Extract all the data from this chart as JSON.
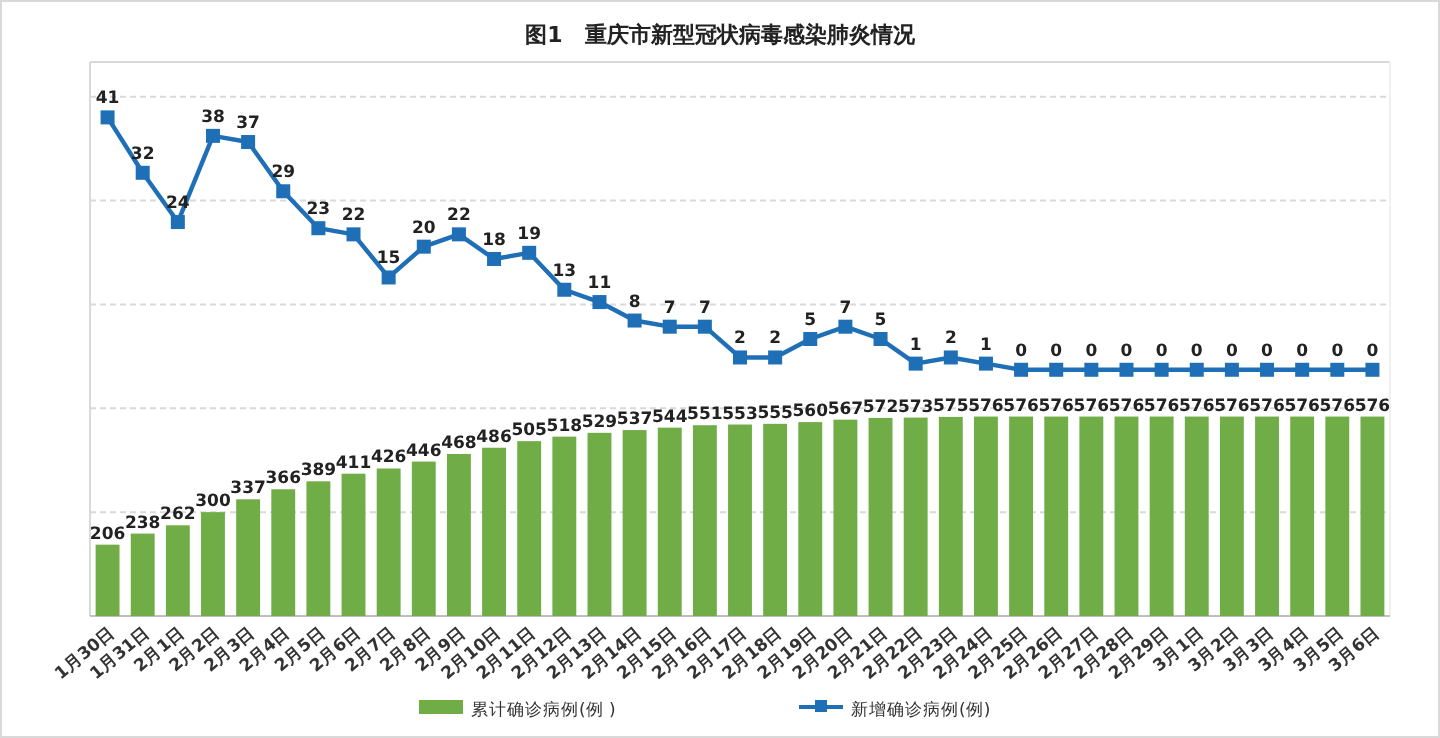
{
  "chart_data": {
    "type": "bar",
    "title": "图1　重庆市新型冠状病毒感染肺炎情况",
    "categories": [
      "1月30日",
      "1月31日",
      "2月1日",
      "2月2日",
      "2月3日",
      "2月4日",
      "2月5日",
      "2月6日",
      "2月7日",
      "2月8日",
      "2月9日",
      "2月10日",
      "2月11日",
      "2月12日",
      "2月13日",
      "2月14日",
      "2月15日",
      "2月16日",
      "2月17日",
      "2月18日",
      "2月19日",
      "2月20日",
      "2月21日",
      "2月22日",
      "2月23日",
      "2月24日",
      "2月25日",
      "2月26日",
      "2月27日",
      "2月28日",
      "2月29日",
      "3月1日",
      "3月2日",
      "3月3日",
      "3月4日",
      "3月5日",
      "3月6日"
    ],
    "series": [
      {
        "name": "累计确诊病例(例 )",
        "color": "#70ad47",
        "values": [
          206,
          238,
          262,
          300,
          337,
          366,
          389,
          411,
          426,
          446,
          468,
          486,
          505,
          518,
          529,
          537,
          544,
          551,
          553,
          555,
          560,
          567,
          572,
          573,
          575,
          576,
          576,
          576,
          576,
          576,
          576,
          576,
          576,
          576,
          576,
          576,
          576
        ]
      },
      {
        "name": "新增确诊病例(例)",
        "type": "line",
        "axis": "y2",
        "color": "#1f6fb7",
        "marker": "square",
        "values": [
          41,
          32,
          24,
          38,
          37,
          29,
          23,
          22,
          15,
          20,
          22,
          18,
          19,
          13,
          11,
          8,
          7,
          7,
          2,
          2,
          5,
          7,
          5,
          1,
          2,
          1,
          0,
          0,
          0,
          0,
          0,
          0,
          0,
          0,
          0,
          0,
          0
        ]
      }
    ],
    "ylim": [
      0,
      1600
    ],
    "yticks": [
      {
        "value": 0,
        "label": null
      },
      {
        "value": 300,
        "label": null
      },
      {
        "value": 600,
        "label": null
      },
      {
        "value": 900,
        "label": null
      },
      {
        "value": 1200,
        "label": null
      },
      {
        "value": 1500,
        "label": null
      }
    ],
    "y2lim": [
      -40,
      50
    ],
    "data_labels": true,
    "grid": "y",
    "legend": "bottom",
    "tick_labels": "x"
  }
}
